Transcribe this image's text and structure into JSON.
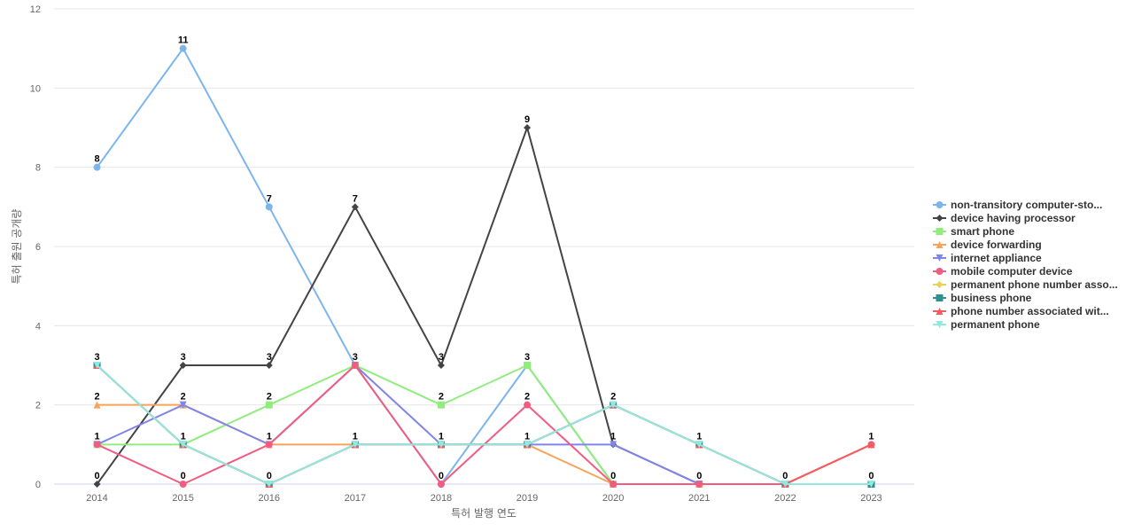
{
  "chart_data": {
    "type": "line",
    "title": "",
    "xlabel": "특허 발행 연도",
    "ylabel": "특허 출원 공개량",
    "x": [
      "2014",
      "2015",
      "2016",
      "2017",
      "2018",
      "2019",
      "2020",
      "2021",
      "2022",
      "2023"
    ],
    "ylim": [
      0,
      12
    ],
    "yticks": [
      0,
      2,
      4,
      6,
      8,
      10,
      12
    ],
    "grid": true,
    "legend_position": "right",
    "series": [
      {
        "name": "non-transitory computer-sto...",
        "color": "#7cb5ec",
        "marker": "circle",
        "values": [
          8,
          11,
          7,
          3,
          0,
          3,
          0,
          0,
          0,
          0
        ]
      },
      {
        "name": "device having processor",
        "color": "#434348",
        "marker": "diamond",
        "values": [
          0,
          3,
          3,
          7,
          3,
          9,
          1,
          0,
          0,
          0
        ]
      },
      {
        "name": "smart phone",
        "color": "#90ed7d",
        "marker": "square",
        "values": [
          1,
          1,
          2,
          3,
          2,
          3,
          0,
          0,
          0,
          0
        ]
      },
      {
        "name": "device forwarding",
        "color": "#f7a35c",
        "marker": "triangle",
        "values": [
          2,
          2,
          1,
          1,
          1,
          1,
          0,
          0,
          0,
          0
        ]
      },
      {
        "name": "internet appliance",
        "color": "#8085e9",
        "marker": "triangle-down",
        "values": [
          1,
          2,
          1,
          3,
          1,
          1,
          1,
          0,
          0,
          0
        ]
      },
      {
        "name": "mobile computer device",
        "color": "#f15c80",
        "marker": "circle",
        "values": [
          1,
          0,
          1,
          3,
          0,
          2,
          0,
          0,
          0,
          1
        ]
      },
      {
        "name": "permanent phone number asso...",
        "color": "#e4d354",
        "marker": "diamond",
        "values": [
          3,
          1,
          0,
          1,
          1,
          1,
          2,
          1,
          0,
          0
        ]
      },
      {
        "name": "business phone",
        "color": "#2b908f",
        "marker": "square",
        "values": [
          3,
          1,
          0,
          1,
          1,
          1,
          2,
          1,
          0,
          0
        ]
      },
      {
        "name": "phone number associated wit...",
        "color": "#f45b5b",
        "marker": "triangle",
        "values": [
          3,
          1,
          0,
          1,
          1,
          1,
          2,
          1,
          0,
          1
        ]
      },
      {
        "name": "permanent phone",
        "color": "#91e8e1",
        "marker": "triangle-down",
        "values": [
          3,
          1,
          0,
          1,
          1,
          1,
          2,
          1,
          0,
          0
        ]
      }
    ],
    "data_labels": [
      {
        "x": "2014",
        "value": 8
      },
      {
        "x": "2014",
        "value": 3
      },
      {
        "x": "2014",
        "value": 2
      },
      {
        "x": "2014",
        "value": 1
      },
      {
        "x": "2014",
        "value": 0
      },
      {
        "x": "2015",
        "value": 11
      },
      {
        "x": "2015",
        "value": 3
      },
      {
        "x": "2015",
        "value": 2
      },
      {
        "x": "2015",
        "value": 1
      },
      {
        "x": "2015",
        "value": 0
      },
      {
        "x": "2016",
        "value": 7
      },
      {
        "x": "2016",
        "value": 3
      },
      {
        "x": "2016",
        "value": 2
      },
      {
        "x": "2016",
        "value": 1
      },
      {
        "x": "2016",
        "value": 0
      },
      {
        "x": "2017",
        "value": 7
      },
      {
        "x": "2017",
        "value": 3
      },
      {
        "x": "2017",
        "value": 1
      },
      {
        "x": "2018",
        "value": 3
      },
      {
        "x": "2018",
        "value": 2
      },
      {
        "x": "2018",
        "value": 1
      },
      {
        "x": "2018",
        "value": 0
      },
      {
        "x": "2019",
        "value": 9
      },
      {
        "x": "2019",
        "value": 3
      },
      {
        "x": "2019",
        "value": 2
      },
      {
        "x": "2019",
        "value": 1
      },
      {
        "x": "2020",
        "value": 2
      },
      {
        "x": "2020",
        "value": 1
      },
      {
        "x": "2020",
        "value": 0
      },
      {
        "x": "2021",
        "value": 1
      },
      {
        "x": "2021",
        "value": 0
      },
      {
        "x": "2022",
        "value": 0
      },
      {
        "x": "2023",
        "value": 1
      },
      {
        "x": "2023",
        "value": 0
      }
    ]
  }
}
